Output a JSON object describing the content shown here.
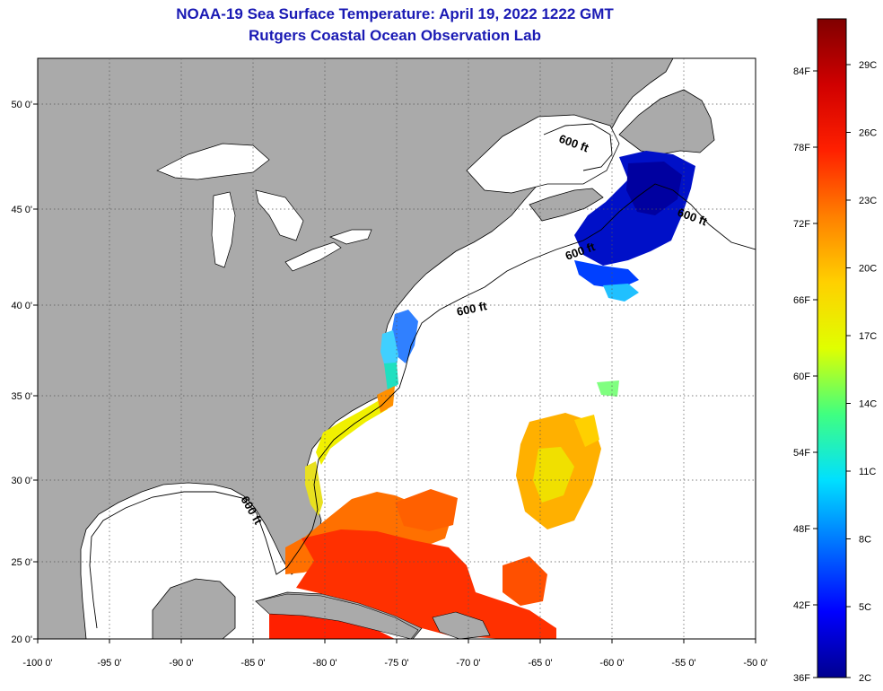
{
  "header": {
    "title": "NOAA-19 Sea Surface Temperature:  April 19, 2022 1222 GMT",
    "subtitle": "Rutgers Coastal Ocean Observation Lab"
  },
  "map": {
    "lon_ticks": [
      "-100 0'",
      "-95 0'",
      "-90 0'",
      "-85 0'",
      "-80 0'",
      "-75 0'",
      "-70 0'",
      "-65 0'",
      "-60 0'",
      "-55 0'",
      "-50 0'"
    ],
    "lat_ticks": [
      "50 0'",
      "45 0'",
      "40 0'",
      "35 0'",
      "30 0'",
      "25 0'",
      "20 0'"
    ],
    "contour_label": "600 ft",
    "colors": {
      "land": "#aaaaaa",
      "water_no_data": "#ffffff",
      "grid": "#555555"
    }
  },
  "colorbar": {
    "fahrenheit_labels": [
      "84F",
      "78F",
      "72F",
      "66F",
      "60F",
      "54F",
      "48F",
      "42F",
      "36F"
    ],
    "celsius_labels": [
      "29C",
      "26C",
      "23C",
      "20C",
      "17C",
      "14C",
      "11C",
      "8C",
      "5C",
      "2C"
    ],
    "stops": [
      "#00008f",
      "#0000ff",
      "#0070ff",
      "#00e0ff",
      "#40ff80",
      "#e0ff00",
      "#ffd000",
      "#ff8000",
      "#ff2000",
      "#d00000",
      "#800000"
    ]
  }
}
